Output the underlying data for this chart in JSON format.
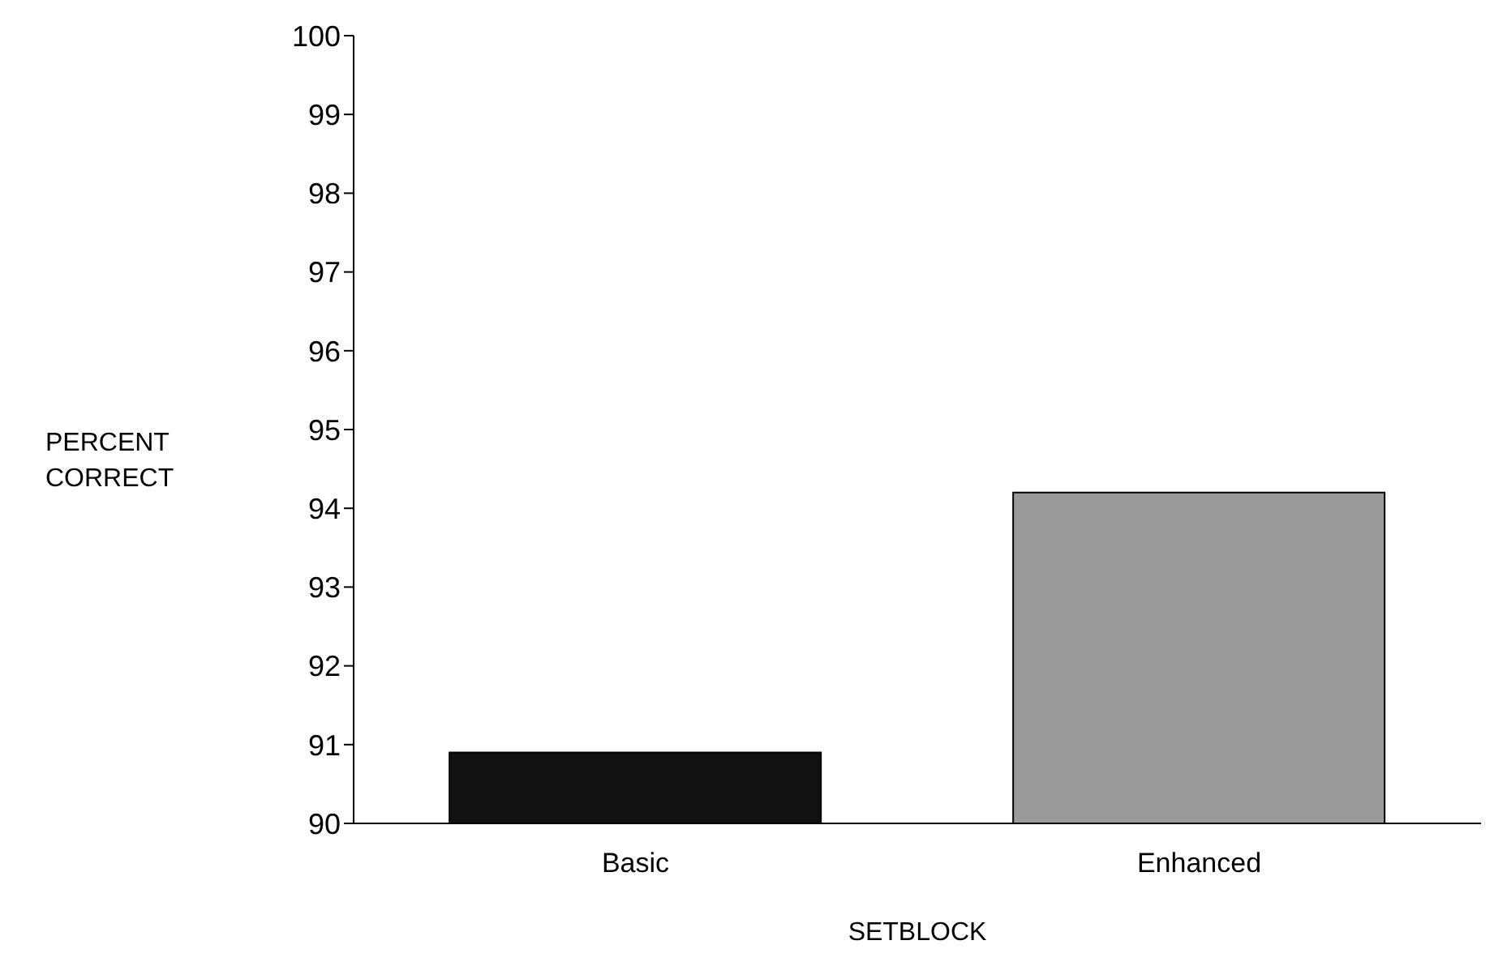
{
  "chart_data": {
    "type": "bar",
    "xlabel": "SETBLOCK",
    "ylabel": "PERCENT CORRECT",
    "categories": [
      "Basic",
      "Enhanced"
    ],
    "values": [
      90.9,
      94.2
    ],
    "colors": [
      "#111111",
      "#9a9a9a"
    ],
    "ylim": [
      90,
      100
    ],
    "yticks": [
      90,
      91,
      92,
      93,
      94,
      95,
      96,
      97,
      98,
      99,
      100
    ],
    "grid": false
  }
}
